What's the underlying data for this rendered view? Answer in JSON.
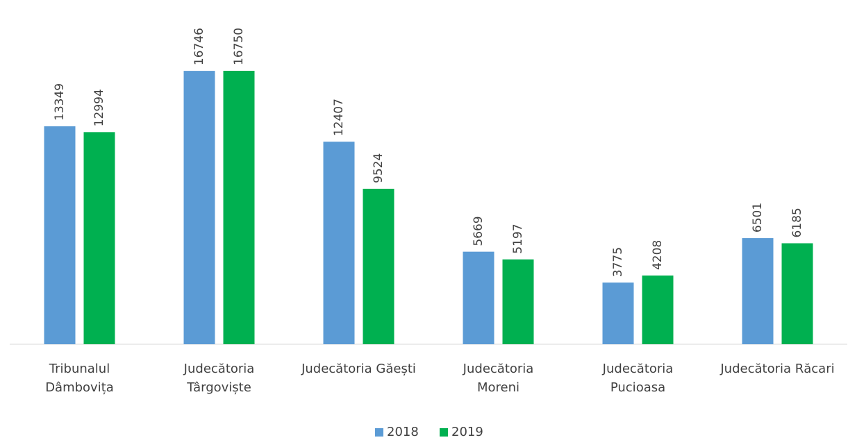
{
  "chart_data": {
    "type": "bar",
    "categories": [
      "Tribunalul\nDâmbovița",
      "Judecătoria\nTârgoviște",
      "Judecătoria Găești",
      "Judecătoria\nMoreni",
      "Judecătoria\nPucioasa",
      "Judecătoria Răcari"
    ],
    "series": [
      {
        "name": "2018",
        "color": "#5b9bd5",
        "values": [
          13349,
          16746,
          12407,
          5669,
          3775,
          6501
        ]
      },
      {
        "name": "2019",
        "color": "#00b050",
        "values": [
          12994,
          16750,
          9524,
          5197,
          4208,
          6185
        ]
      }
    ],
    "legend": "bottom"
  }
}
